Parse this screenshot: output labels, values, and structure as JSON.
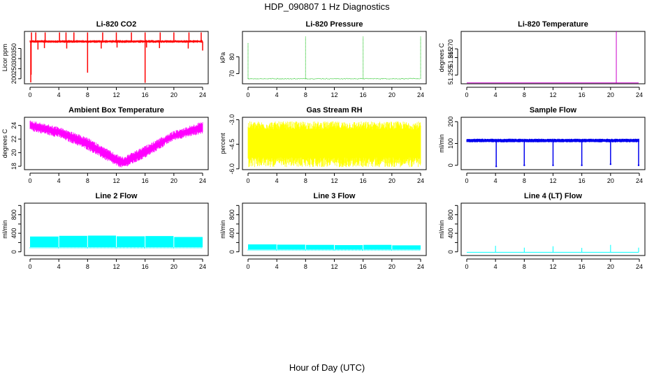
{
  "page": {
    "title": "HDP_090807 1 Hz Diagnostics",
    "x_axis_label": "Hour of Day (UTC)"
  },
  "chart_data": [
    {
      "type": "line",
      "title": "Li-820 CO2",
      "ylabel": "Licor ppm",
      "color": "#ff0000",
      "xlim": [
        0,
        24
      ],
      "ylim": [
        175,
        435
      ],
      "xticks": [
        0,
        4,
        8,
        12,
        16,
        20,
        24
      ],
      "yticks": [
        200,
        250,
        300,
        350
      ],
      "ytick_labels": [
        "200",
        "250",
        "300",
        "350"
      ],
      "series": [
        {
          "band": [
            378,
            392
          ],
          "spikes_up": [
            0.2,
            0.8,
            2.1,
            4.1,
            5.0,
            6.1,
            8.0,
            10.1,
            12.0,
            14.1,
            16.0,
            18.1,
            20.0,
            22.1,
            23.8
          ],
          "spike_up_value": 430,
          "spikes_down": [
            [
              0.1,
              182
            ],
            [
              0.15,
              220
            ],
            [
              1.1,
              345
            ],
            [
              2.0,
              352
            ],
            [
              5.1,
              350
            ],
            [
              8.0,
              230
            ],
            [
              9.9,
              350
            ],
            [
              12.1,
              355
            ],
            [
              16.0,
              180
            ],
            [
              16.2,
              355
            ],
            [
              18.0,
              352
            ],
            [
              22.0,
              350
            ],
            [
              24.0,
              340
            ]
          ]
        }
      ]
    },
    {
      "type": "line",
      "title": "Li-820 Pressure",
      "ylabel": "kPa",
      "color": "#00bb00",
      "xlim": [
        0,
        24
      ],
      "ylim": [
        64,
        95
      ],
      "xticks": [
        0,
        4,
        8,
        12,
        16,
        20,
        24
      ],
      "yticks": [
        70,
        80
      ],
      "ytick_labels": [
        "70",
        "80"
      ],
      "series": [
        {
          "baseline": 67,
          "spikes": [
            [
              0.0,
              88
            ],
            [
              8.0,
              92
            ],
            [
              16.0,
              92
            ],
            [
              24.0,
              92
            ]
          ]
        }
      ]
    },
    {
      "type": "line",
      "title": "Li-820 Temperature",
      "ylabel": "degrees C",
      "color": "#cc00cc",
      "xlim": [
        0,
        24
      ],
      "ylim": [
        51.25,
        51.28
      ],
      "xticks": [
        0,
        4,
        8,
        12,
        16,
        20,
        24
      ],
      "yticks": [
        51.255,
        51.265,
        51.27
      ],
      "ytick_labels": [
        "51.255",
        "51.265",
        "51.270"
      ],
      "series": [
        {
          "baseline": 51.2505,
          "spikes": [
            [
              20.8,
              51.28
            ]
          ]
        }
      ]
    },
    {
      "type": "line",
      "title": "Ambient Box Temperature",
      "ylabel": "degrees C",
      "color": "#ff00ff",
      "xlim": [
        0,
        24
      ],
      "ylim": [
        17.5,
        25.2
      ],
      "xticks": [
        0,
        4,
        8,
        12,
        16,
        20,
        24
      ],
      "yticks": [
        18,
        20,
        22,
        24
      ],
      "ytick_labels": [
        "18",
        "20",
        "22",
        "24"
      ],
      "series": [
        {
          "upper": [
            [
              0,
              24.8
            ],
            [
              4,
              23.8
            ],
            [
              8,
              22.2
            ],
            [
              12,
              19.8
            ],
            [
              13,
              19.4
            ],
            [
              16,
              21.0
            ],
            [
              20,
              23.2
            ],
            [
              24,
              24.6
            ]
          ],
          "lower": [
            [
              0,
              23.2
            ],
            [
              4,
              22.2
            ],
            [
              8,
              20.4
            ],
            [
              12,
              18.0
            ],
            [
              13,
              17.7
            ],
            [
              16,
              19.2
            ],
            [
              20,
              21.8
            ],
            [
              24,
              22.8
            ]
          ]
        }
      ]
    },
    {
      "type": "line",
      "title": "Gas Stream RH",
      "ylabel": "percent",
      "color": "#ffff00",
      "xlim": [
        0,
        24
      ],
      "ylim": [
        -6.05,
        -2.85
      ],
      "xticks": [
        0,
        4,
        8,
        12,
        16,
        20,
        24
      ],
      "yticks": [
        -6.0,
        -4.5,
        -3.0
      ],
      "ytick_labels": [
        "-6.0",
        "-4.5",
        "-3.0"
      ],
      "series": [
        {
          "band": [
            -5.3,
            -3.6
          ],
          "noise_extent": [
            -5.9,
            -3.1
          ]
        }
      ]
    },
    {
      "type": "line",
      "title": "Sample Flow",
      "ylabel": "ml/min",
      "color": "#0000ee",
      "xlim": [
        0,
        24
      ],
      "ylim": [
        -20,
        220
      ],
      "xticks": [
        0,
        4,
        8,
        12,
        16,
        20,
        24
      ],
      "yticks": [
        0,
        100,
        200
      ],
      "ytick_labels": [
        "0",
        "100",
        "200"
      ],
      "series": [
        {
          "band": [
            105,
            122
          ],
          "dips": [
            [
              4.1,
              -5
            ],
            [
              8.0,
              0
            ],
            [
              12.0,
              0
            ],
            [
              16.0,
              0
            ],
            [
              20.0,
              5
            ],
            [
              23.9,
              0
            ]
          ]
        }
      ]
    },
    {
      "type": "area",
      "title": "Line 2 Flow",
      "ylabel": "ml/min",
      "color": "#00ffff",
      "xlim": [
        0,
        24
      ],
      "ylim": [
        -80,
        1050
      ],
      "xticks": [
        0,
        4,
        8,
        12,
        16,
        20,
        24
      ],
      "yticks": [
        0,
        400,
        800
      ],
      "extra_yticks": [
        200,
        600,
        1000
      ],
      "ytick_labels": [
        "0",
        "400",
        "800"
      ],
      "series": [
        {
          "low": 100,
          "segments": [
            [
              0,
              4,
              330
            ],
            [
              4,
              8,
              345
            ],
            [
              8,
              12,
              350
            ],
            [
              12,
              16,
              335
            ],
            [
              16,
              20,
              340
            ],
            [
              20,
              24,
              320
            ]
          ],
          "gaps": [
            4.0,
            8.0,
            12.0,
            16.0,
            20.0
          ]
        }
      ]
    },
    {
      "type": "area",
      "title": "Line 3 Flow",
      "ylabel": "ml/min",
      "color": "#00ffff",
      "xlim": [
        0,
        24
      ],
      "ylim": [
        -80,
        1050
      ],
      "xticks": [
        0,
        4,
        8,
        12,
        16,
        20,
        24
      ],
      "yticks": [
        0,
        400,
        800
      ],
      "extra_yticks": [
        200,
        600,
        1000
      ],
      "ytick_labels": [
        "0",
        "400",
        "800"
      ],
      "series": [
        {
          "low": 50,
          "segments": [
            [
              0,
              4,
              160
            ],
            [
              4,
              8,
              155
            ],
            [
              8,
              12,
              150
            ],
            [
              12,
              16,
              145
            ],
            [
              16,
              20,
              150
            ],
            [
              20,
              24,
              140
            ]
          ],
          "gaps": [
            4.0,
            8.0,
            12.0,
            16.0,
            20.0
          ]
        }
      ]
    },
    {
      "type": "line",
      "title": "Line 4 (LT) Flow",
      "ylabel": "ml/min",
      "color": "#00ffff",
      "xlim": [
        0,
        24
      ],
      "ylim": [
        -80,
        1050
      ],
      "xticks": [
        0,
        4,
        8,
        12,
        16,
        20,
        24
      ],
      "yticks": [
        0,
        400,
        800
      ],
      "extra_yticks": [
        200,
        600,
        1000
      ],
      "ytick_labels": [
        "0",
        "400",
        "800"
      ],
      "series": [
        {
          "baseline": -10,
          "spikes": [
            [
              4.0,
              130
            ],
            [
              8.0,
              90
            ],
            [
              12.0,
              120
            ],
            [
              16.0,
              85
            ],
            [
              20.0,
              150
            ],
            [
              23.9,
              90
            ]
          ]
        }
      ]
    }
  ]
}
